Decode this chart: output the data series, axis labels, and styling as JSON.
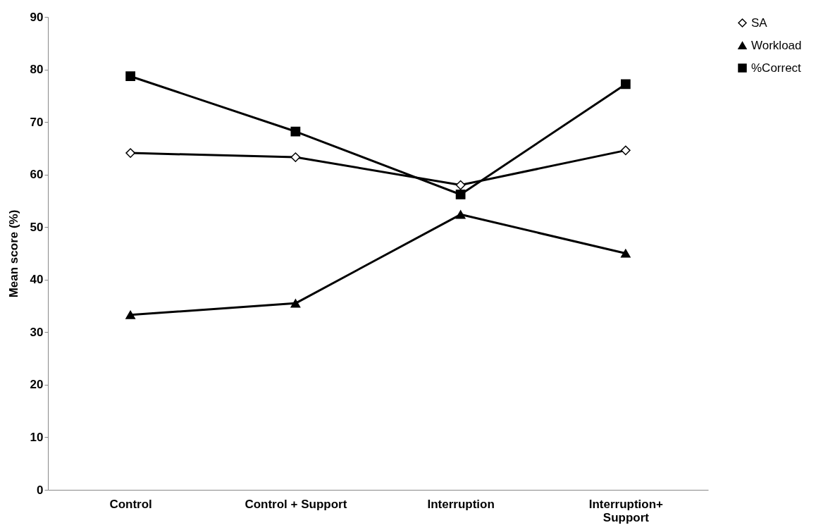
{
  "chart_data": {
    "type": "line",
    "ylabel": "Mean score (%)",
    "categories": [
      "Control",
      "Control + Support",
      "Interruption",
      "Interruption+\nSupport"
    ],
    "series": [
      {
        "name": "SA",
        "color": "#000000",
        "marker": "diamond",
        "values": [
          64.1,
          63.3,
          58.0,
          64.6
        ]
      },
      {
        "name": "Workload",
        "color": "#000000",
        "marker": "triangle",
        "values": [
          33.3,
          35.5,
          52.4,
          45.0
        ]
      },
      {
        "name": "%Correct",
        "color": "#000000",
        "marker": "square",
        "values": [
          78.7,
          68.2,
          56.2,
          77.2
        ]
      }
    ],
    "ylim": [
      0,
      90
    ],
    "yticks": [
      0,
      10,
      20,
      30,
      40,
      50,
      60,
      70,
      80,
      90
    ],
    "grid": false,
    "legend": "top right",
    "line_style": "solid"
  }
}
